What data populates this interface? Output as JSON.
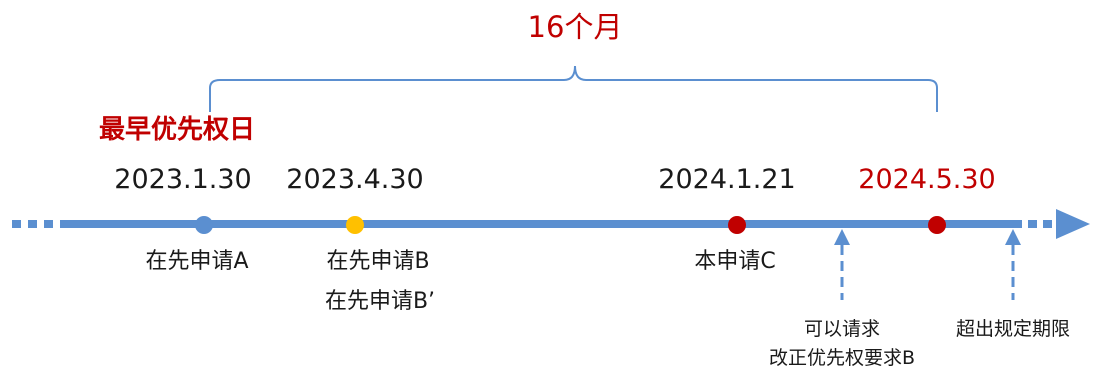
{
  "span_label": "16个月",
  "earliest_priority_label": "最早优先权日",
  "dates": {
    "d1": "2023.1.30",
    "d2": "2023.4.30",
    "d3": "2024.1.21",
    "d4": "2024.5.30"
  },
  "applications": {
    "a": "在先申请A",
    "b": "在先申请B",
    "b_prime": "在先申请B’",
    "c": "本申请C"
  },
  "notes": {
    "correction_line1": "可以请求",
    "correction_line2": "改正优先权要求B",
    "exceeded": "超出规定期限"
  },
  "colors": {
    "timeline": "#5b8fd0",
    "bracket": "#5b8fd0",
    "accent_red": "#c00000",
    "dot_blue": "#5b8fd0",
    "dot_yellow": "#ffc000",
    "dot_red": "#c00000"
  }
}
